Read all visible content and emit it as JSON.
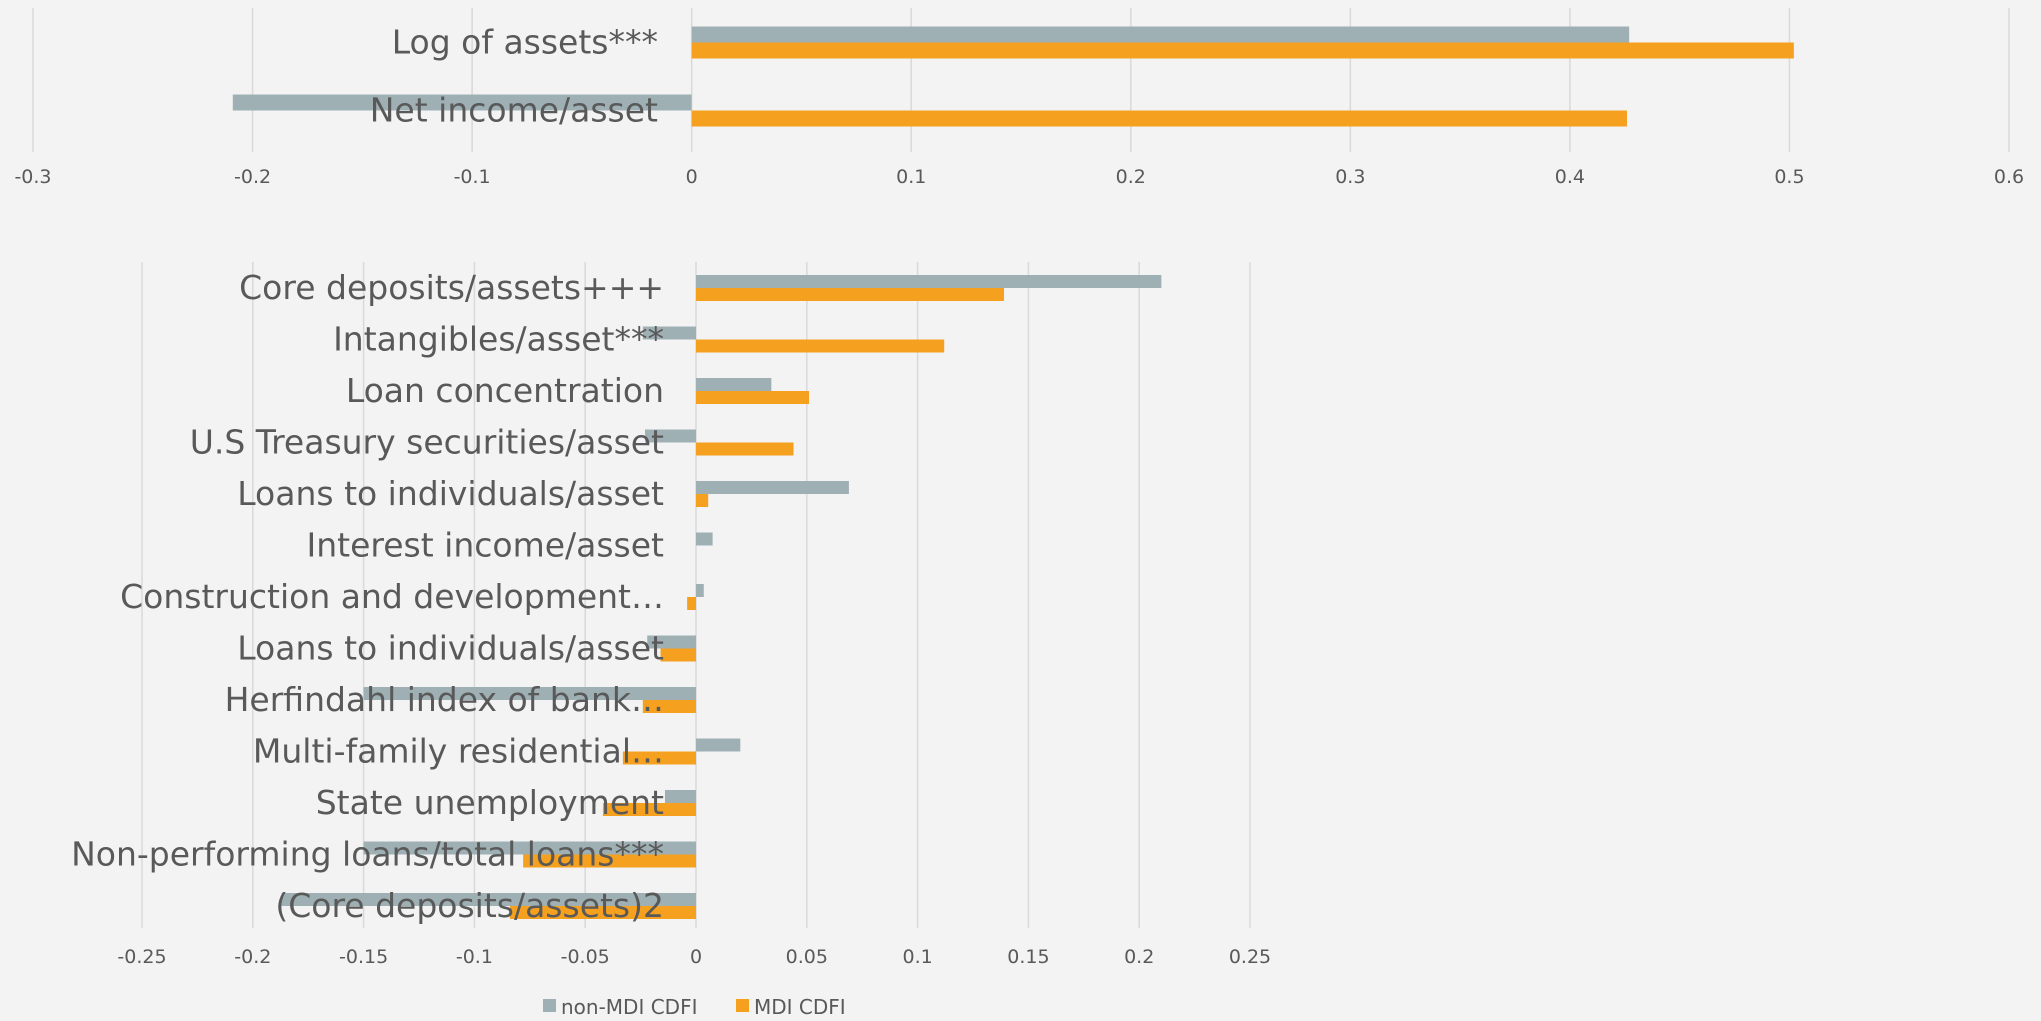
{
  "chart_data": [
    {
      "type": "bar",
      "orientation": "horizontal",
      "categories": [
        "Log of assets***",
        "Net income/asset"
      ],
      "series": [
        {
          "name": "non-MDI CDFI",
          "color": "#9fb0b4",
          "values": [
            0.427,
            -0.209
          ]
        },
        {
          "name": "MDI CDFI",
          "color": "#f5a01e",
          "values": [
            0.502,
            0.426
          ]
        }
      ],
      "xlim": [
        -0.3,
        0.6
      ],
      "x_ticks": [
        -0.3,
        -0.2,
        -0.1,
        0,
        0.1,
        0.2,
        0.3,
        0.4,
        0.5,
        0.6
      ],
      "x_tick_labels": [
        "-0.3",
        "-0.2",
        "-0.1",
        "0",
        "0.1",
        "0.2",
        "0.3",
        "0.4",
        "0.5",
        "0.6"
      ],
      "grid": true
    },
    {
      "type": "bar",
      "orientation": "horizontal",
      "categories": [
        "Core deposits/assets+++",
        "Intangibles/asset***",
        "Loan concentration",
        "U.S Treasury securities/asset",
        "Loans to individuals/asset",
        "Interest income/asset",
        "Construction and development…",
        "Loans to individuals/asset",
        "Herfindahl index of bank…",
        "Multi-family residential…",
        "State unemployment",
        "Non-performing loans/total loans***",
        "(Core deposits/assets)2"
      ],
      "series": [
        {
          "name": "non-MDI CDFI",
          "color": "#9fb0b4",
          "values": [
            0.21,
            -0.024,
            0.034,
            -0.023,
            0.069,
            0.0075,
            0.0035,
            -0.022,
            -0.15,
            0.02,
            -0.014,
            -0.15,
            -0.187
          ]
        },
        {
          "name": "MDI CDFI",
          "color": "#f5a01e",
          "values": [
            0.139,
            0.112,
            0.051,
            0.044,
            0.0055,
            0,
            -0.004,
            -0.016,
            -0.024,
            -0.033,
            -0.042,
            -0.078,
            -0.084
          ]
        }
      ],
      "xlim": [
        -0.25,
        0.25
      ],
      "x_ticks": [
        -0.25,
        -0.2,
        -0.15,
        -0.1,
        -0.05,
        0,
        0.05,
        0.1,
        0.15,
        0.2,
        0.25
      ],
      "x_tick_labels": [
        "-0.25",
        "-0.2",
        "-0.15",
        "-0.1",
        "-0.05",
        "0",
        "0.05",
        "0.1",
        "0.15",
        "0.2",
        "0.25"
      ],
      "grid": true,
      "legend": {
        "placement": "bottom",
        "entries": [
          "non-MDI CDFI",
          "MDI CDFI"
        ]
      }
    }
  ]
}
